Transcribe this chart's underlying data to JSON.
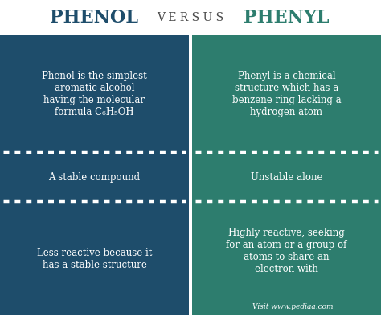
{
  "title_left": "PHENOL",
  "title_versus": "V E R S U S",
  "title_right": "PHENYL",
  "color_left": "#1e4d6b",
  "color_right": "#2d7d6e",
  "color_versus_text": "#4a4a4a",
  "text_color": "#ffffff",
  "title_color_left": "#1e4d6b",
  "title_color_right": "#2d7d6e",
  "left_texts": [
    "Phenol is the simplest\naromatic alcohol\nhaving the molecular\nformula C₆H₅OH",
    "A stable compound",
    "Less reactive because it\nhas a stable structure"
  ],
  "right_texts": [
    "Phenyl is a chemical\nstructure which has a\nbenzene ring lacking a\nhydrogen atom",
    "Unstable alone",
    "Highly reactive, seeking\nfor an atom or a group of\natoms to share an\nelectron with"
  ],
  "watermark": "Visit www.pediaa.com",
  "bg_color": "#ffffff",
  "divider_color": "#ffffff"
}
